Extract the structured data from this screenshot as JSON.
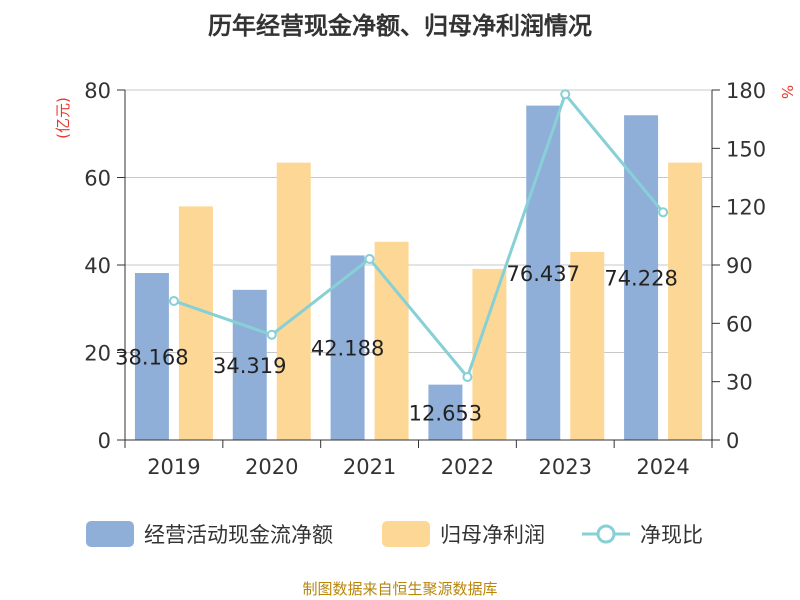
{
  "title": "历年经营现金净额、归母净利润情况",
  "source_note": "制图数据来自恒生聚源数据库",
  "colors": {
    "cash_flow": "#8fafd9",
    "net_profit": "#fdd795",
    "ratio": "#86d0d6",
    "axis_label_red": "#e8382c"
  },
  "chart_data": {
    "type": "bar",
    "categories": [
      "2019",
      "2020",
      "2021",
      "2022",
      "2023",
      "2024"
    ],
    "series": [
      {
        "name": "经营活动现金流净额",
        "axis": "left",
        "values": [
          38.168,
          34.319,
          42.188,
          12.653,
          76.437,
          74.228
        ],
        "labels": [
          "38.168",
          "34.319",
          "42.188",
          "12.653",
          "76.437",
          "74.228"
        ]
      },
      {
        "name": "归母净利润",
        "axis": "left",
        "values": [
          53.4,
          63.4,
          45.3,
          39.1,
          43.0,
          63.4
        ]
      },
      {
        "name": "净现比",
        "axis": "right",
        "type": "line",
        "values": [
          71.5,
          54.1,
          93.1,
          32.4,
          177.8,
          117.1
        ]
      }
    ],
    "y_left": {
      "label": "(亿元)",
      "min": 0,
      "max": 80,
      "ticks": [
        0,
        20,
        40,
        60,
        80
      ]
    },
    "y_right": {
      "label": "%",
      "min": 0,
      "max": 180,
      "ticks": [
        0,
        30,
        60,
        90,
        120,
        150,
        180
      ]
    },
    "grid": true,
    "legend_position": "bottom"
  }
}
